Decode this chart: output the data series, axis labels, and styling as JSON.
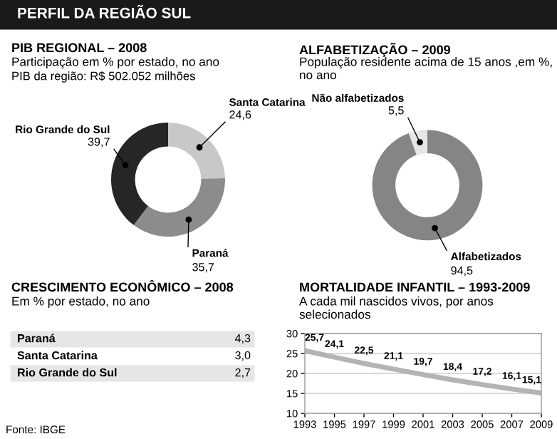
{
  "chart_data": [
    {
      "type": "donut",
      "title": "PIB REGIONAL – 2008",
      "subtitle": "Participação em % por estado, no ano",
      "annotations": [
        "PERFIL DA REGIÃO SUL",
        "PIB da região: R$ 502.052 milhões"
      ],
      "categories": [
        "Santa Catarina",
        "Paraná",
        "Rio Grande do Sul"
      ],
      "values": [
        24.6,
        35.7,
        39.7
      ],
      "value_labels": [
        "24,6",
        "35,7",
        "39,7"
      ],
      "colors": [
        "#c8c8c8",
        "#8c8c8c",
        "#262626"
      ]
    },
    {
      "type": "donut",
      "title": "ALFABETIZAÇÃO – 2009",
      "subtitle": "População residente acima de 15 anos ,em %, no ano",
      "categories": [
        "Não alfabetizados",
        "Alfabetizados"
      ],
      "values": [
        5.5,
        94.5
      ],
      "value_labels": [
        "5,5",
        "94,5"
      ],
      "colors": [
        "#e6e6e6",
        "#858585"
      ]
    },
    {
      "type": "other",
      "title": "CRESCIMENTO ECONÔMICO – 2008",
      "subtitle": "Em % por estado, no ano",
      "annotations": [
        "Fonte: IBGE"
      ],
      "categories": [
        "Paraná",
        "Santa Catarina",
        "Rio Grande do Sul"
      ],
      "values": [
        4.3,
        3.0,
        2.7
      ],
      "value_labels": [
        "4,3",
        "3,0",
        "2,7"
      ]
    },
    {
      "type": "line",
      "title": "MORTALIDADE INFANTIL – 1993-2009",
      "subtitle": "A cada mil nascidos vivos, por anos selecionados",
      "x": [
        1993,
        1995,
        1997,
        1999,
        2001,
        2003,
        2005,
        2007,
        2009
      ],
      "series": [
        {
          "color": "#b4b4b4",
          "values": [
            25.7,
            24.1,
            22.5,
            21.1,
            19.7,
            18.4,
            17.2,
            16.1,
            15.1
          ],
          "value_labels": [
            "25,7",
            "24,1",
            "22,5",
            "21,1",
            "19,7",
            "18,4",
            "17,2",
            "16,1",
            "15,1"
          ]
        }
      ],
      "xlim": [
        1993,
        2009
      ],
      "xticks": [
        1993,
        1995,
        1997,
        1999,
        2001,
        2003,
        2005,
        2007,
        2009
      ],
      "ylim": [
        10,
        30
      ],
      "yticks": [
        10,
        15,
        20,
        25,
        30
      ],
      "grid": "y",
      "marker": "none",
      "line_style": "solid"
    }
  ]
}
